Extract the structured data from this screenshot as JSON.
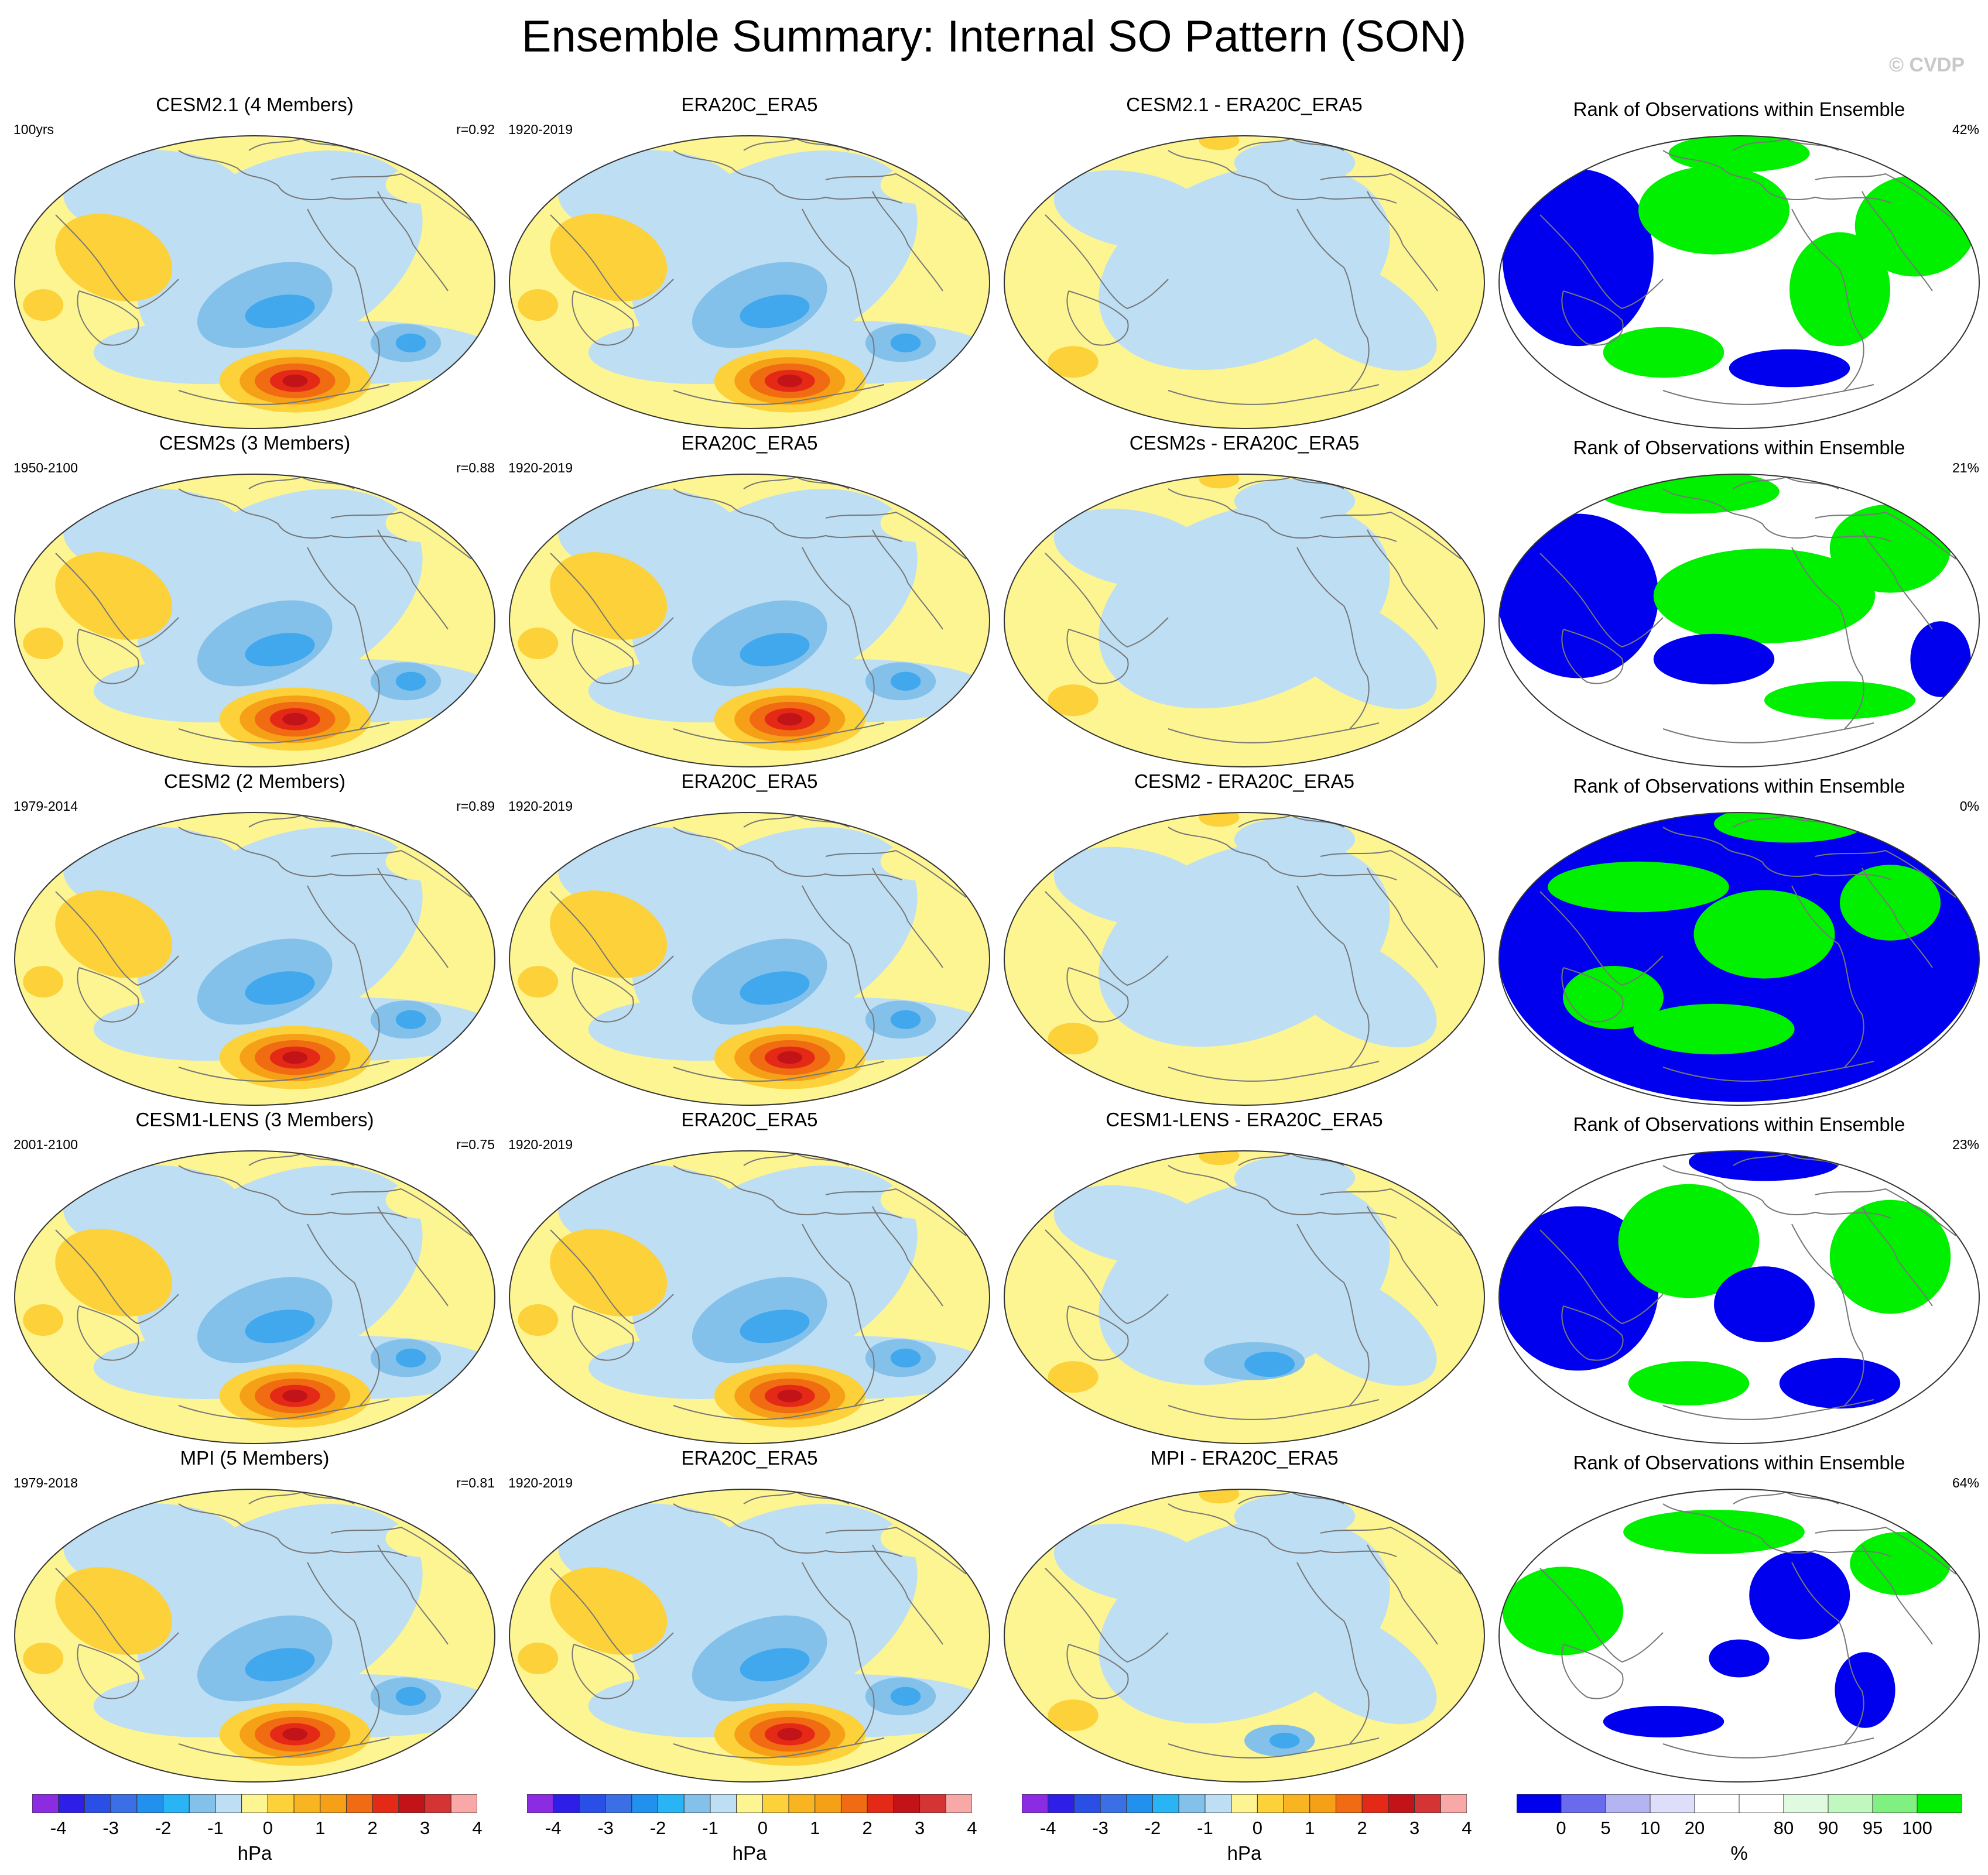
{
  "title": "Ensemble Summary: Internal SO Pattern (SON)",
  "credit": "© CVDP",
  "colors": {
    "yellow_light": "#fdf592",
    "yellow": "#fcd13a",
    "orange": "#f5a017",
    "orange_dark": "#f06b12",
    "red": "#e42a17",
    "red_dark": "#c21418",
    "blue_light": "#bedef3",
    "blue": "#84c1ea",
    "blue_mid": "#41a8ee",
    "blue_dark": "#1a84ef",
    "rank_green": "#00f000",
    "rank_blue": "#0000ee",
    "coast": "#777777"
  },
  "rows": [
    {
      "model": {
        "title": "CESM2.1 (4 Members)",
        "left": "100yrs",
        "right": "r=0.92"
      },
      "obs": {
        "title": "ERA20C_ERA5",
        "left": "1920-2019"
      },
      "diff": {
        "title": "CESM2.1 - ERA20C_ERA5"
      },
      "rank": {
        "title": "Rank of Observations within Ensemble",
        "right": "42%"
      }
    },
    {
      "model": {
        "title": "CESM2s (3 Members)",
        "left": "1950-2100",
        "right": "r=0.88"
      },
      "obs": {
        "title": "ERA20C_ERA5",
        "left": "1920-2019"
      },
      "diff": {
        "title": "CESM2s - ERA20C_ERA5"
      },
      "rank": {
        "title": "Rank of Observations within Ensemble",
        "right": "21%"
      }
    },
    {
      "model": {
        "title": "CESM2 (2 Members)",
        "left": "1979-2014",
        "right": "r=0.89"
      },
      "obs": {
        "title": "ERA20C_ERA5",
        "left": "1920-2019"
      },
      "diff": {
        "title": "CESM2 - ERA20C_ERA5"
      },
      "rank": {
        "title": "Rank of Observations within Ensemble",
        "right": "0%"
      }
    },
    {
      "model": {
        "title": "CESM1-LENS (3 Members)",
        "left": "2001-2100",
        "right": "r=0.75"
      },
      "obs": {
        "title": "ERA20C_ERA5",
        "left": "1920-2019"
      },
      "diff": {
        "title": "CESM1-LENS - ERA20C_ERA5"
      },
      "rank": {
        "title": "Rank of Observations within Ensemble",
        "right": "23%"
      }
    },
    {
      "model": {
        "title": "MPI (5 Members)",
        "left": "1979-2018",
        "right": "r=0.81"
      },
      "obs": {
        "title": "ERA20C_ERA5",
        "left": "1920-2019"
      },
      "diff": {
        "title": "MPI - ERA20C_ERA5"
      },
      "rank": {
        "title": "Rank of Observations within Ensemble",
        "right": "64%"
      }
    }
  ],
  "colorbars": {
    "hpa": {
      "unit": "hPa",
      "labels": [
        "-4",
        "-3",
        "-2",
        "-1",
        "0",
        "1",
        "2",
        "3",
        "4"
      ],
      "colors": [
        "#8b2be2",
        "#2d1ee8",
        "#2a4fe6",
        "#3b6fe6",
        "#2190ee",
        "#28b4f5",
        "#84c1ea",
        "#bedef3",
        "#fdf592",
        "#fcd13a",
        "#f9b521",
        "#f5a017",
        "#f06b12",
        "#e42a17",
        "#c21418",
        "#d53434",
        "#f9a8a8"
      ]
    },
    "rank": {
      "unit": "%",
      "labels": [
        "0",
        "5",
        "10",
        "20",
        "80",
        "90",
        "95",
        "100"
      ],
      "colors": [
        "#0000ee",
        "#6a6aee",
        "#b4b4f2",
        "#dedefa",
        "#ffffff",
        "#ffffff",
        "#e0fae0",
        "#c0f8c0",
        "#80f080",
        "#00ee00"
      ]
    }
  }
}
